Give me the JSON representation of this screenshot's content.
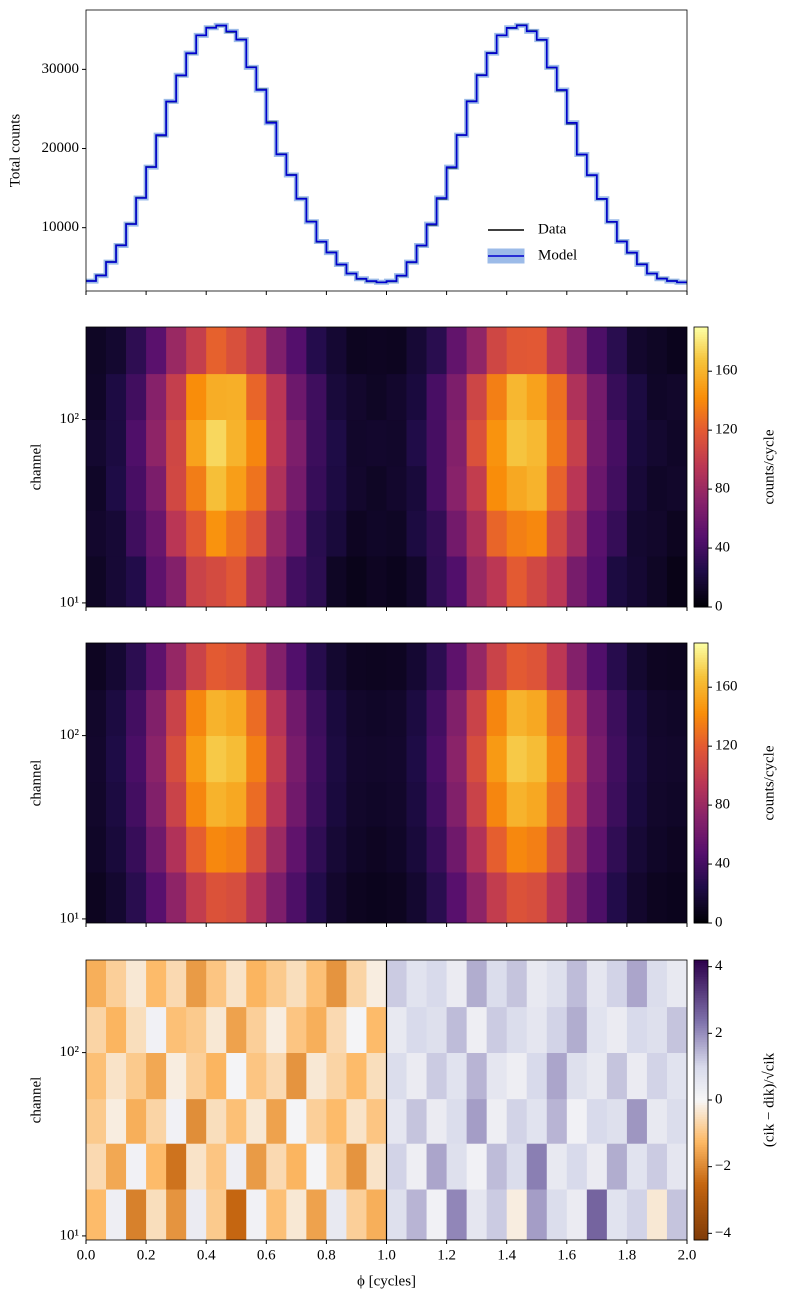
{
  "chart_data": [
    {
      "type": "step",
      "ylabel": "Total counts",
      "xlim": [
        0,
        2
      ],
      "xticks": [
        0,
        0.2,
        0.4,
        0.6,
        0.8,
        1,
        1.2,
        1.4,
        1.6,
        1.8,
        2
      ],
      "ylim": [
        2000,
        37500
      ],
      "yticks": [
        10000,
        20000,
        30000
      ],
      "legend": "lower right",
      "series": [
        {
          "name": "Data",
          "color": "#000000",
          "values": [
            3300,
            4000,
            5700,
            7800,
            10500,
            13800,
            17700,
            21600,
            25900,
            29200,
            32000,
            34300,
            35300,
            35500,
            34700,
            33800,
            30300,
            27500,
            23400,
            19300,
            16700,
            13700,
            10800,
            8200,
            6900,
            5300,
            4200,
            3500,
            3200,
            3100,
            3200,
            3900,
            5600,
            7700,
            10300,
            13600,
            17500,
            21700,
            26000,
            29300,
            32100,
            34300,
            35200,
            35600,
            34900,
            33700,
            30200,
            27300,
            23100,
            19200,
            16600,
            13600,
            10700,
            8300,
            6800,
            5400,
            4200,
            3600,
            3300,
            3100
          ]
        },
        {
          "name": "Model",
          "color": "#0000cd",
          "band_color": "#5b8fd9",
          "values": [
            3250,
            3950,
            5650,
            7750,
            10450,
            13750,
            17650,
            21700,
            25950,
            29250,
            32050,
            34300,
            35250,
            35550,
            34800,
            33750,
            30250,
            27400,
            23250,
            19250,
            16650,
            13650,
            10750,
            8250,
            6850,
            5350,
            4200,
            3550,
            3250,
            3100,
            3250,
            3950,
            5650,
            7750,
            10450,
            13750,
            17650,
            21700,
            25950,
            29250,
            32050,
            34300,
            35250,
            35550,
            34800,
            33750,
            30250,
            27400,
            23250,
            19250,
            16650,
            13650,
            10750,
            8250,
            6850,
            5350,
            4200,
            3550,
            3250,
            3100
          ]
        }
      ]
    },
    {
      "type": "heatmap",
      "ylabel": "channel",
      "log_y": true,
      "xlim": [
        0,
        2
      ],
      "xticks": [
        0,
        0.2,
        0.4,
        0.6,
        0.8,
        1,
        1.2,
        1.4,
        1.6,
        1.8,
        2
      ],
      "ylim": [
        9.5,
        320
      ],
      "yticks": [
        {
          "value": 10,
          "label": "10¹"
        },
        {
          "value": 100,
          "label": "10²"
        }
      ],
      "y_bins": [
        9.5,
        18,
        32,
        56,
        100,
        178,
        320
      ],
      "colormap": "inferno",
      "clim": [
        0,
        190
      ],
      "cbar_ticks": [
        0,
        40,
        80,
        120,
        160
      ],
      "cbar_label": "counts/cycle",
      "values": [
        [
          12,
          18,
          26,
          52,
          70,
          104,
          110,
          118,
          88,
          70,
          40,
          30,
          12,
          8,
          11,
          9,
          14,
          32,
          46,
          80,
          96,
          120,
          108,
          95,
          64,
          47,
          22,
          17,
          12,
          7
        ],
        [
          15,
          18,
          38,
          57,
          95,
          118,
          145,
          130,
          115,
          78,
          56,
          29,
          20,
          11,
          13,
          12,
          22,
          33,
          62,
          88,
          125,
          136,
          140,
          108,
          84,
          50,
          34,
          16,
          14,
          10
        ],
        [
          13,
          24,
          42,
          66,
          108,
          135,
          166,
          150,
          131,
          90,
          63,
          35,
          23,
          15,
          12,
          15,
          20,
          41,
          72,
          100,
          142,
          155,
          160,
          124,
          95,
          58,
          39,
          19,
          13,
          14
        ],
        [
          16,
          22,
          45,
          75,
          107,
          152,
          175,
          160,
          139,
          96,
          67,
          37,
          24,
          14,
          15,
          14,
          25,
          41,
          70,
          114,
          145,
          168,
          163,
          133,
          102,
          62,
          41,
          21,
          16,
          13
        ],
        [
          13,
          23,
          39,
          71,
          101,
          142,
          157,
          158,
          125,
          95,
          59,
          38,
          20,
          15,
          12,
          15,
          21,
          42,
          67,
          106,
          136,
          162,
          152,
          130,
          90,
          63,
          35,
          22,
          13,
          14
        ],
        [
          12,
          16,
          31,
          50,
          80,
          101,
          123,
          113,
          98,
          68,
          47,
          27,
          17,
          10,
          11,
          10,
          18,
          29,
          54,
          76,
          107,
          118,
          119,
          93,
          72,
          44,
          29,
          15,
          12,
          9
        ]
      ]
    },
    {
      "type": "heatmap",
      "ylabel": "channel",
      "log_y": true,
      "xlim": [
        0,
        2
      ],
      "xticks": [
        0,
        0.2,
        0.4,
        0.6,
        0.8,
        1,
        1.2,
        1.4,
        1.6,
        1.8,
        2
      ],
      "ylim": [
        9.5,
        320
      ],
      "yticks": [
        {
          "value": 10,
          "label": "10¹"
        },
        {
          "value": 100,
          "label": "10²"
        }
      ],
      "y_bins": [
        9.5,
        18,
        32,
        56,
        100,
        178,
        320
      ],
      "colormap": "inferno",
      "clim": [
        0,
        190
      ],
      "cbar_ticks": [
        0,
        40,
        80,
        120,
        160
      ],
      "cbar_label": "counts/cycle",
      "values": [
        [
          10,
          16,
          29,
          49,
          75,
          100,
          115,
          112,
          92,
          67,
          44,
          26,
          15,
          10,
          9,
          10,
          16,
          29,
          49,
          75,
          100,
          115,
          112,
          92,
          67,
          44,
          26,
          15,
          10,
          9
        ],
        [
          13,
          20,
          35,
          60,
          91,
          122,
          140,
          136,
          112,
          81,
          53,
          32,
          18,
          13,
          11,
          13,
          20,
          35,
          60,
          91,
          122,
          140,
          136,
          112,
          81,
          53,
          32,
          18,
          13,
          11
        ],
        [
          14,
          22,
          40,
          69,
          104,
          139,
          160,
          155,
          128,
          93,
          61,
          37,
          21,
          14,
          13,
          14,
          22,
          40,
          69,
          104,
          139,
          160,
          155,
          128,
          93,
          61,
          37,
          21,
          14,
          13
        ],
        [
          15,
          24,
          43,
          73,
          111,
          148,
          170,
          165,
          136,
          99,
          65,
          39,
          22,
          15,
          14,
          15,
          24,
          43,
          73,
          111,
          148,
          170,
          165,
          136,
          99,
          65,
          39,
          22,
          15,
          14
        ],
        [
          14,
          22,
          40,
          69,
          104,
          139,
          160,
          155,
          128,
          93,
          61,
          37,
          21,
          14,
          13,
          14,
          22,
          40,
          69,
          104,
          139,
          160,
          155,
          128,
          93,
          61,
          37,
          21,
          14,
          13
        ],
        [
          11,
          17,
          30,
          52,
          78,
          104,
          120,
          116,
          96,
          70,
          46,
          28,
          16,
          11,
          10,
          11,
          17,
          30,
          52,
          78,
          104,
          120,
          116,
          96,
          70,
          46,
          28,
          16,
          11,
          10
        ]
      ]
    },
    {
      "type": "heatmap",
      "ylabel": "channel",
      "xlabel": "ϕ [cycles]",
      "log_y": true,
      "xlim": [
        0,
        2
      ],
      "xticks": [
        {
          "value": 0,
          "label": "0.0"
        },
        {
          "value": 0.2,
          "label": "0.2"
        },
        {
          "value": 0.4,
          "label": "0.4"
        },
        {
          "value": 0.6,
          "label": "0.6"
        },
        {
          "value": 0.8,
          "label": "0.8"
        },
        {
          "value": 1,
          "label": "1.0"
        },
        {
          "value": 1.2,
          "label": "1.2"
        },
        {
          "value": 1.4,
          "label": "1.4"
        },
        {
          "value": 1.6,
          "label": "1.6"
        },
        {
          "value": 1.8,
          "label": "1.8"
        },
        {
          "value": 2,
          "label": "2.0"
        }
      ],
      "ylim": [
        9.5,
        320
      ],
      "yticks": [
        {
          "value": 10,
          "label": "10¹"
        },
        {
          "value": 100,
          "label": "10²"
        }
      ],
      "y_bins": [
        9.5,
        18,
        32,
        56,
        100,
        178,
        320
      ],
      "colormap": "PuOr_r",
      "clim": [
        -4.2,
        4.2
      ],
      "cbar_ticks": [
        {
          "value": -4,
          "label": "−4"
        },
        {
          "value": -2,
          "label": "−2"
        },
        0,
        2,
        4
      ],
      "cbar_label": "(cik − dik)/√cik",
      "vline": 1,
      "values": [
        [
          -1.2,
          0.3,
          -2.1,
          -0.5,
          -1.8,
          0.4,
          -0.9,
          -2.5,
          0.2,
          -1.1,
          -0.3,
          -1.6,
          0.5,
          -0.8,
          -1.4,
          0.8,
          1.5,
          0.2,
          2.1,
          0.6,
          1.2,
          -0.2,
          1.8,
          0.9,
          0.4,
          2.6,
          0.7,
          1.1,
          -0.3,
          1.3
        ],
        [
          -0.6,
          -1.5,
          0.2,
          -1.2,
          -2.3,
          -0.4,
          -1.0,
          0.3,
          -1.7,
          -0.6,
          -1.3,
          0.1,
          -0.9,
          -1.8,
          -0.4,
          1.1,
          0.3,
          1.7,
          0.8,
          0.2,
          1.4,
          0.9,
          2.2,
          0.5,
          1.0,
          0.4,
          1.6,
          0.7,
          1.2,
          0.6
        ],
        [
          -0.9,
          -0.2,
          -1.4,
          -0.7,
          0.2,
          -1.9,
          -0.5,
          -1.1,
          -0.3,
          -1.6,
          0.1,
          -0.8,
          -1.2,
          -0.4,
          -1.0,
          0.6,
          1.3,
          0.4,
          0.9,
          1.8,
          0.3,
          1.1,
          0.7,
          1.5,
          0.2,
          1.0,
          0.8,
          1.9,
          0.5,
          0.9
        ],
        [
          -1.1,
          -0.4,
          -0.9,
          -1.5,
          -0.2,
          -0.8,
          -1.3,
          0.1,
          -1.0,
          -0.6,
          -1.8,
          -0.3,
          -0.7,
          -1.2,
          -0.5,
          0.9,
          0.4,
          1.2,
          0.7,
          1.5,
          0.6,
          0.3,
          1.0,
          1.7,
          0.8,
          0.5,
          1.3,
          0.4,
          1.1,
          0.7
        ],
        [
          -0.7,
          -1.3,
          -0.5,
          0.2,
          -1.1,
          -0.9,
          -0.3,
          -1.6,
          -0.8,
          -0.2,
          -1.0,
          -1.4,
          -0.6,
          0.1,
          -1.2,
          0.5,
          1.0,
          0.8,
          1.4,
          0.3,
          1.2,
          0.9,
          0.6,
          1.1,
          1.6,
          0.7,
          0.4,
          1.0,
          0.8,
          1.3
        ],
        [
          -1.4,
          -0.8,
          -0.3,
          -1.2,
          -0.6,
          -1.7,
          -1.0,
          -0.4,
          -1.3,
          -0.9,
          -0.5,
          -1.1,
          -1.8,
          -0.7,
          -0.2,
          1.2,
          0.7,
          1.0,
          0.4,
          1.6,
          0.9,
          1.3,
          0.5,
          0.8,
          1.4,
          0.6,
          1.1,
          1.7,
          0.9,
          0.5
        ]
      ]
    }
  ]
}
